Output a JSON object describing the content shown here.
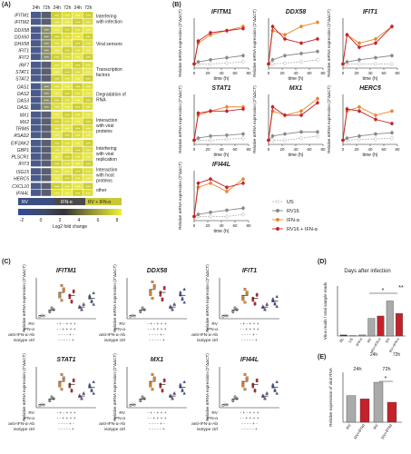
{
  "panel_labels": [
    "(A)",
    "(B)",
    "(C)",
    "(D)",
    "(E)"
  ],
  "panelA": {
    "col_headers": [
      "24h",
      "72h",
      "24h",
      "72h",
      "24h",
      "72h"
    ],
    "groups": [
      {
        "label": "Interfering with infection",
        "genes": [
          "IFITM1",
          "IFITM2"
        ]
      },
      {
        "label": "Viral sensors",
        "genes": [
          "DDX58",
          "DDX60",
          "DHX58",
          "IFIT1",
          "IFIT2"
        ]
      },
      {
        "label": "Transcription factors",
        "genes": [
          "IRF7",
          "STAT1",
          "STAT2"
        ]
      },
      {
        "label": "Degradation of RNA",
        "genes": [
          "OAS1",
          "OAS2",
          "OAS3",
          "OASL"
        ]
      },
      {
        "label": "Interaction with viral proteins",
        "genes": [
          "MX1",
          "MX2",
          "TRIM5",
          "RSAD2"
        ]
      },
      {
        "label": "Interfering with viral replication",
        "genes": [
          "EIF2AK2",
          "GBP1",
          "PLSCR1",
          "IFIT3"
        ]
      },
      {
        "label": "Interaction with host proteins",
        "genes": [
          "ISG15",
          "HERC5"
        ]
      },
      {
        "label": "other",
        "genes": [
          "CXCL10",
          "IFI44L"
        ]
      }
    ],
    "cell_text": "***",
    "condition_labels": [
      "RV",
      "IFN-α",
      "RV + IFN-α"
    ],
    "scale_ticks": [
      "-2",
      "0",
      "2",
      "4",
      "6",
      "8"
    ],
    "scale_label": "Log2 fold change"
  },
  "chart_data": [
    {
      "type": "line",
      "panel": "B",
      "title": "IFITM1",
      "ylabel": "Relative mRNA expression (2^ΔΔCT)",
      "xlabel": "time (h)",
      "x": [
        0,
        6,
        24,
        48,
        72
      ],
      "xticks": [
        0,
        20,
        40,
        60,
        80
      ],
      "series": [
        {
          "name": "US",
          "values": [
            1,
            1,
            1,
            1.2,
            1.5
          ]
        },
        {
          "name": "RV16",
          "values": [
            1,
            1.5,
            2,
            2.5,
            3
          ]
        },
        {
          "name": "IFN-α",
          "values": [
            1,
            6,
            8,
            9,
            10
          ]
        },
        {
          "name": "RV16 + IFN-α",
          "values": [
            1,
            6.5,
            8.5,
            9,
            9.5
          ]
        }
      ]
    },
    {
      "type": "line",
      "panel": "B",
      "title": "DDX58",
      "ylabel": "Relative mRNA expression (2^ΔΔCT)",
      "xlabel": "time (h)",
      "x": [
        0,
        6,
        24,
        48,
        72
      ],
      "xticks": [
        0,
        20,
        40,
        60,
        80
      ],
      "series": [
        {
          "name": "US",
          "values": [
            1,
            1,
            1.2,
            1.5,
            2
          ]
        },
        {
          "name": "RV16",
          "values": [
            1,
            2,
            3,
            3.5,
            4
          ]
        },
        {
          "name": "IFN-α",
          "values": [
            1,
            9,
            8,
            10,
            11
          ]
        },
        {
          "name": "RV16 + IFN-α",
          "values": [
            1,
            10,
            7,
            6,
            7
          ]
        }
      ]
    },
    {
      "type": "line",
      "panel": "B",
      "title": "IFIT1",
      "ylabel": "Relative mRNA expression (2^ΔΔCT)",
      "xlabel": "time (h)",
      "x": [
        0,
        6,
        24,
        48,
        72
      ],
      "xticks": [
        0,
        20,
        40,
        60,
        80
      ],
      "series": [
        {
          "name": "US",
          "values": [
            1,
            1,
            1,
            1,
            1
          ]
        },
        {
          "name": "RV16",
          "values": [
            1,
            1.5,
            2,
            2.5,
            3
          ]
        },
        {
          "name": "IFN-α",
          "values": [
            1,
            8,
            6,
            7,
            10
          ]
        },
        {
          "name": "RV16 + IFN-α",
          "values": [
            1,
            8,
            5,
            6,
            10
          ]
        }
      ]
    },
    {
      "type": "line",
      "panel": "B",
      "title": "STAT1",
      "ylabel": "Relative mRNA expression (2^ΔΔCT)",
      "xlabel": "time (h)",
      "x": [
        0,
        6,
        24,
        48,
        72
      ],
      "xticks": [
        0,
        20,
        40,
        60,
        80
      ],
      "series": [
        {
          "name": "US",
          "values": [
            1,
            1,
            1,
            1.2,
            1.5
          ]
        },
        {
          "name": "RV16",
          "values": [
            1,
            1.5,
            2,
            2.2,
            2.5
          ]
        },
        {
          "name": "IFN-α",
          "values": [
            1,
            7,
            8,
            9,
            9
          ]
        },
        {
          "name": "RV16 + IFN-α",
          "values": [
            1,
            7.5,
            8,
            8,
            8.5
          ]
        }
      ]
    },
    {
      "type": "line",
      "panel": "B",
      "title": "MX1",
      "ylabel": "Relative mRNA expression (2^ΔΔCT)",
      "xlabel": "time (h)",
      "x": [
        0,
        6,
        24,
        48,
        72
      ],
      "xticks": [
        0,
        20,
        40,
        60,
        80
      ],
      "series": [
        {
          "name": "US",
          "values": [
            1,
            1,
            1,
            1.5,
            2
          ]
        },
        {
          "name": "RV16",
          "values": [
            1,
            2,
            2.5,
            3,
            3
          ]
        },
        {
          "name": "IFN-α",
          "values": [
            1,
            8,
            7,
            8,
            11
          ]
        },
        {
          "name": "RV16 + IFN-α",
          "values": [
            1,
            9,
            7,
            7,
            10
          ]
        }
      ]
    },
    {
      "type": "line",
      "panel": "B",
      "title": "HERC5",
      "ylabel": "Relative mRNA expression (2^ΔΔCT)",
      "xlabel": "time (h)",
      "x": [
        0,
        6,
        24,
        48,
        72
      ],
      "xticks": [
        0,
        20,
        40,
        60,
        80
      ],
      "series": [
        {
          "name": "US",
          "values": [
            1,
            1,
            1.2,
            1.3,
            1.5
          ]
        },
        {
          "name": "RV16",
          "values": [
            1,
            1.5,
            2,
            2.5,
            2.8
          ]
        },
        {
          "name": "IFN-α",
          "values": [
            1,
            8,
            9,
            7,
            8
          ]
        },
        {
          "name": "RV16 + IFN-α",
          "values": [
            1,
            8.5,
            8,
            6,
            5
          ]
        }
      ]
    },
    {
      "type": "line",
      "panel": "B",
      "title": "IFI44L",
      "ylabel": "Relative mRNA expression (2^ΔΔCT)",
      "xlabel": "time (h)",
      "x": [
        0,
        6,
        24,
        48,
        72
      ],
      "xticks": [
        0,
        20,
        40,
        60,
        80
      ],
      "series": [
        {
          "name": "US",
          "values": [
            1,
            1,
            1,
            1,
            1.5
          ]
        },
        {
          "name": "RV16",
          "values": [
            1,
            1.5,
            2,
            2.5,
            3
          ]
        },
        {
          "name": "IFN-α",
          "values": [
            1,
            8,
            9,
            7,
            10
          ]
        },
        {
          "name": "RV16 + IFN-α",
          "values": [
            1,
            9,
            10,
            8,
            9
          ]
        }
      ]
    }
  ],
  "legendB": [
    "US",
    "RV16",
    "IFN-α",
    "RV16 + IFN-α"
  ],
  "panelC": {
    "ylabel": "Relative mRNA expression (2^ΔΔCT)",
    "row_labels": [
      "RV",
      "IFN-α",
      "anti-IFN-α-Ab",
      "isotype ctrl"
    ],
    "row_marks": [
      "- + - + + +",
      "- - + + + +",
      "- - - - + -",
      "- - - - - +"
    ],
    "charts": [
      {
        "title": "IFITM1",
        "means": [
          1,
          3,
          9,
          8,
          4,
          7
        ]
      },
      {
        "title": "DDX58",
        "means": [
          1,
          3,
          10,
          9,
          4,
          8
        ]
      },
      {
        "title": "IFIT1",
        "means": [
          1,
          3,
          8,
          7,
          4,
          6
        ]
      },
      {
        "title": "STAT1",
        "means": [
          1,
          3,
          9,
          8,
          4,
          7
        ]
      },
      {
        "title": "MX1",
        "means": [
          1,
          3,
          9,
          8,
          4,
          7
        ]
      },
      {
        "title": "IFI44L",
        "means": [
          1,
          3,
          9,
          8,
          4,
          7
        ]
      }
    ]
  },
  "panelD": {
    "title": "Days after infection",
    "ylabel": "Virus reads / total sample reads",
    "categories": [
      "BL",
      "US",
      "IFN-α",
      "RV",
      "RV+IFN-α",
      "RV",
      "RV+IFN-α"
    ],
    "values": [
      0.02,
      0.01,
      0.02,
      0.35,
      0.4,
      0.7,
      0.45
    ],
    "ylim": [
      0,
      1
    ],
    "day_labels": [
      "24h",
      "72h"
    ],
    "sig": [
      "*",
      "**"
    ]
  },
  "panelE": {
    "ylabel": "Relative expression of viral RNA",
    "categories": [
      "RV",
      "RV+IFNα",
      "RV",
      "RV+IFNα"
    ],
    "values": [
      0.8,
      0.7,
      1.2,
      0.6
    ],
    "day_labels": [
      "24h",
      "72h"
    ],
    "sig": [
      "*"
    ]
  },
  "colors": {
    "us": "#ffffff",
    "rv": "#999999",
    "ifn": "#e8872a",
    "rvifn": "#c4212a",
    "blue_low": "#3b5ba9",
    "dark": "#2b2b2b",
    "yellow": "#e6e632"
  }
}
